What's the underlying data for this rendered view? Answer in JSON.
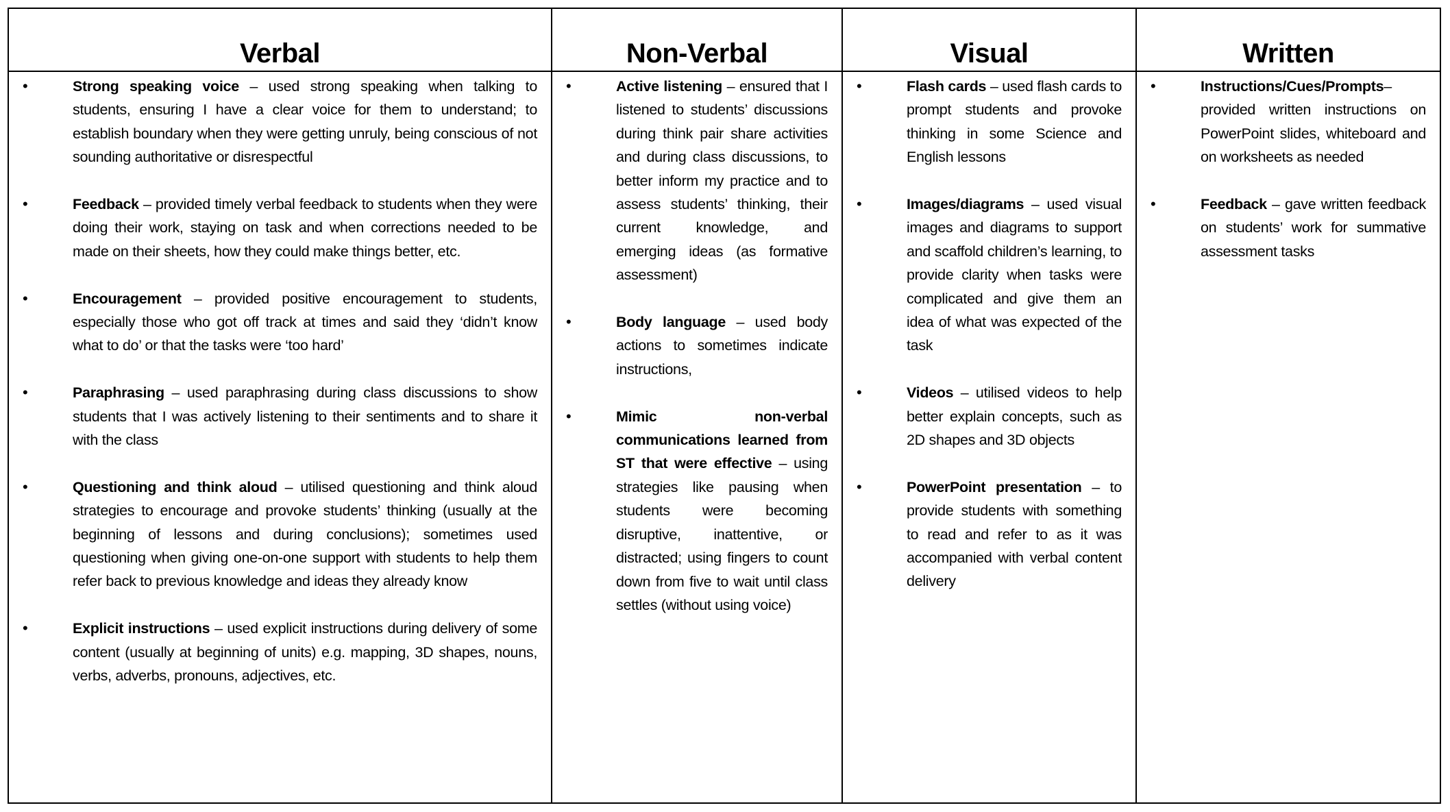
{
  "headers": [
    "Verbal",
    "Non-Verbal",
    "Visual",
    "Written"
  ],
  "columns": [
    [
      {
        "term": "Strong speaking voice",
        "text": " – used strong speaking when talking to students, ensuring I have a clear voice for them to understand; to establish boundary when they were getting unruly, being conscious of not sounding authoritative or disrespectful"
      },
      {
        "term": "Feedback",
        "text": " – provided timely verbal feedback to students when they were doing their work, staying on task and when corrections needed to be made on their sheets, how they could make things better, etc."
      },
      {
        "term": "Encouragement",
        "text": " – provided positive encouragement to students, especially those who got off track at times and said they ‘didn’t know what to do’ or that the tasks were ‘too hard’"
      },
      {
        "term": "Paraphrasing",
        "text": " – used paraphrasing during class discussions to show students that I was actively listening to their sentiments and to share it with the class"
      },
      {
        "term": "Questioning and think aloud",
        "text": " – utilised questioning and think aloud strategies to encourage and provoke students’ thinking (usually at the beginning of lessons and during conclusions); sometimes used questioning when giving one-on-one support with students to help them refer back to previous knowledge and ideas they already know"
      },
      {
        "term": "Explicit instructions",
        "text": " – used explicit instructions during delivery of some content (usually at beginning of units) e.g. mapping, 3D shapes, nouns, verbs, adverbs, pronouns, adjectives, etc."
      }
    ],
    [
      {
        "term": "Active listening",
        "text": " – ensured that I listened to students’ discussions during think pair share activities and during class discussions, to better inform my practice and to assess students’ thinking, their current knowledge, and emerging ideas (as formative assessment)"
      },
      {
        "term": "Body language",
        "text": " – used body actions to sometimes indicate instructions,"
      },
      {
        "term": "Mimic non-verbal communications learned from ST that were effective",
        "text": " – using strategies like pausing when students were becoming disruptive, inattentive, or distracted; using fingers to count down from five to wait until class settles (without using voice)"
      }
    ],
    [
      {
        "term": "Flash cards",
        "text": " – used flash cards to prompt students and provoke thinking in some Science and English lessons"
      },
      {
        "term": "Images/diagrams",
        "text": " – used visual images and diagrams to support and scaffold children’s learning, to provide clarity when tasks were complicated and give them an idea of what was expected of the task"
      },
      {
        "term": "Videos",
        "text": " – utilised videos to help better explain concepts, such as 2D shapes and 3D objects"
      },
      {
        "term": "PowerPoint presentation",
        "text": " – to provide students with something to read and refer to as it was accompanied with verbal content delivery"
      }
    ],
    [
      {
        "term": "Instructions/Cues/Prompts",
        "text": "– provided written instructions on PowerPoint slides, whiteboard and on worksheets as needed"
      },
      {
        "term": "Feedback",
        "text": " – gave written feedback on students’ work for summative assessment tasks"
      }
    ]
  ]
}
